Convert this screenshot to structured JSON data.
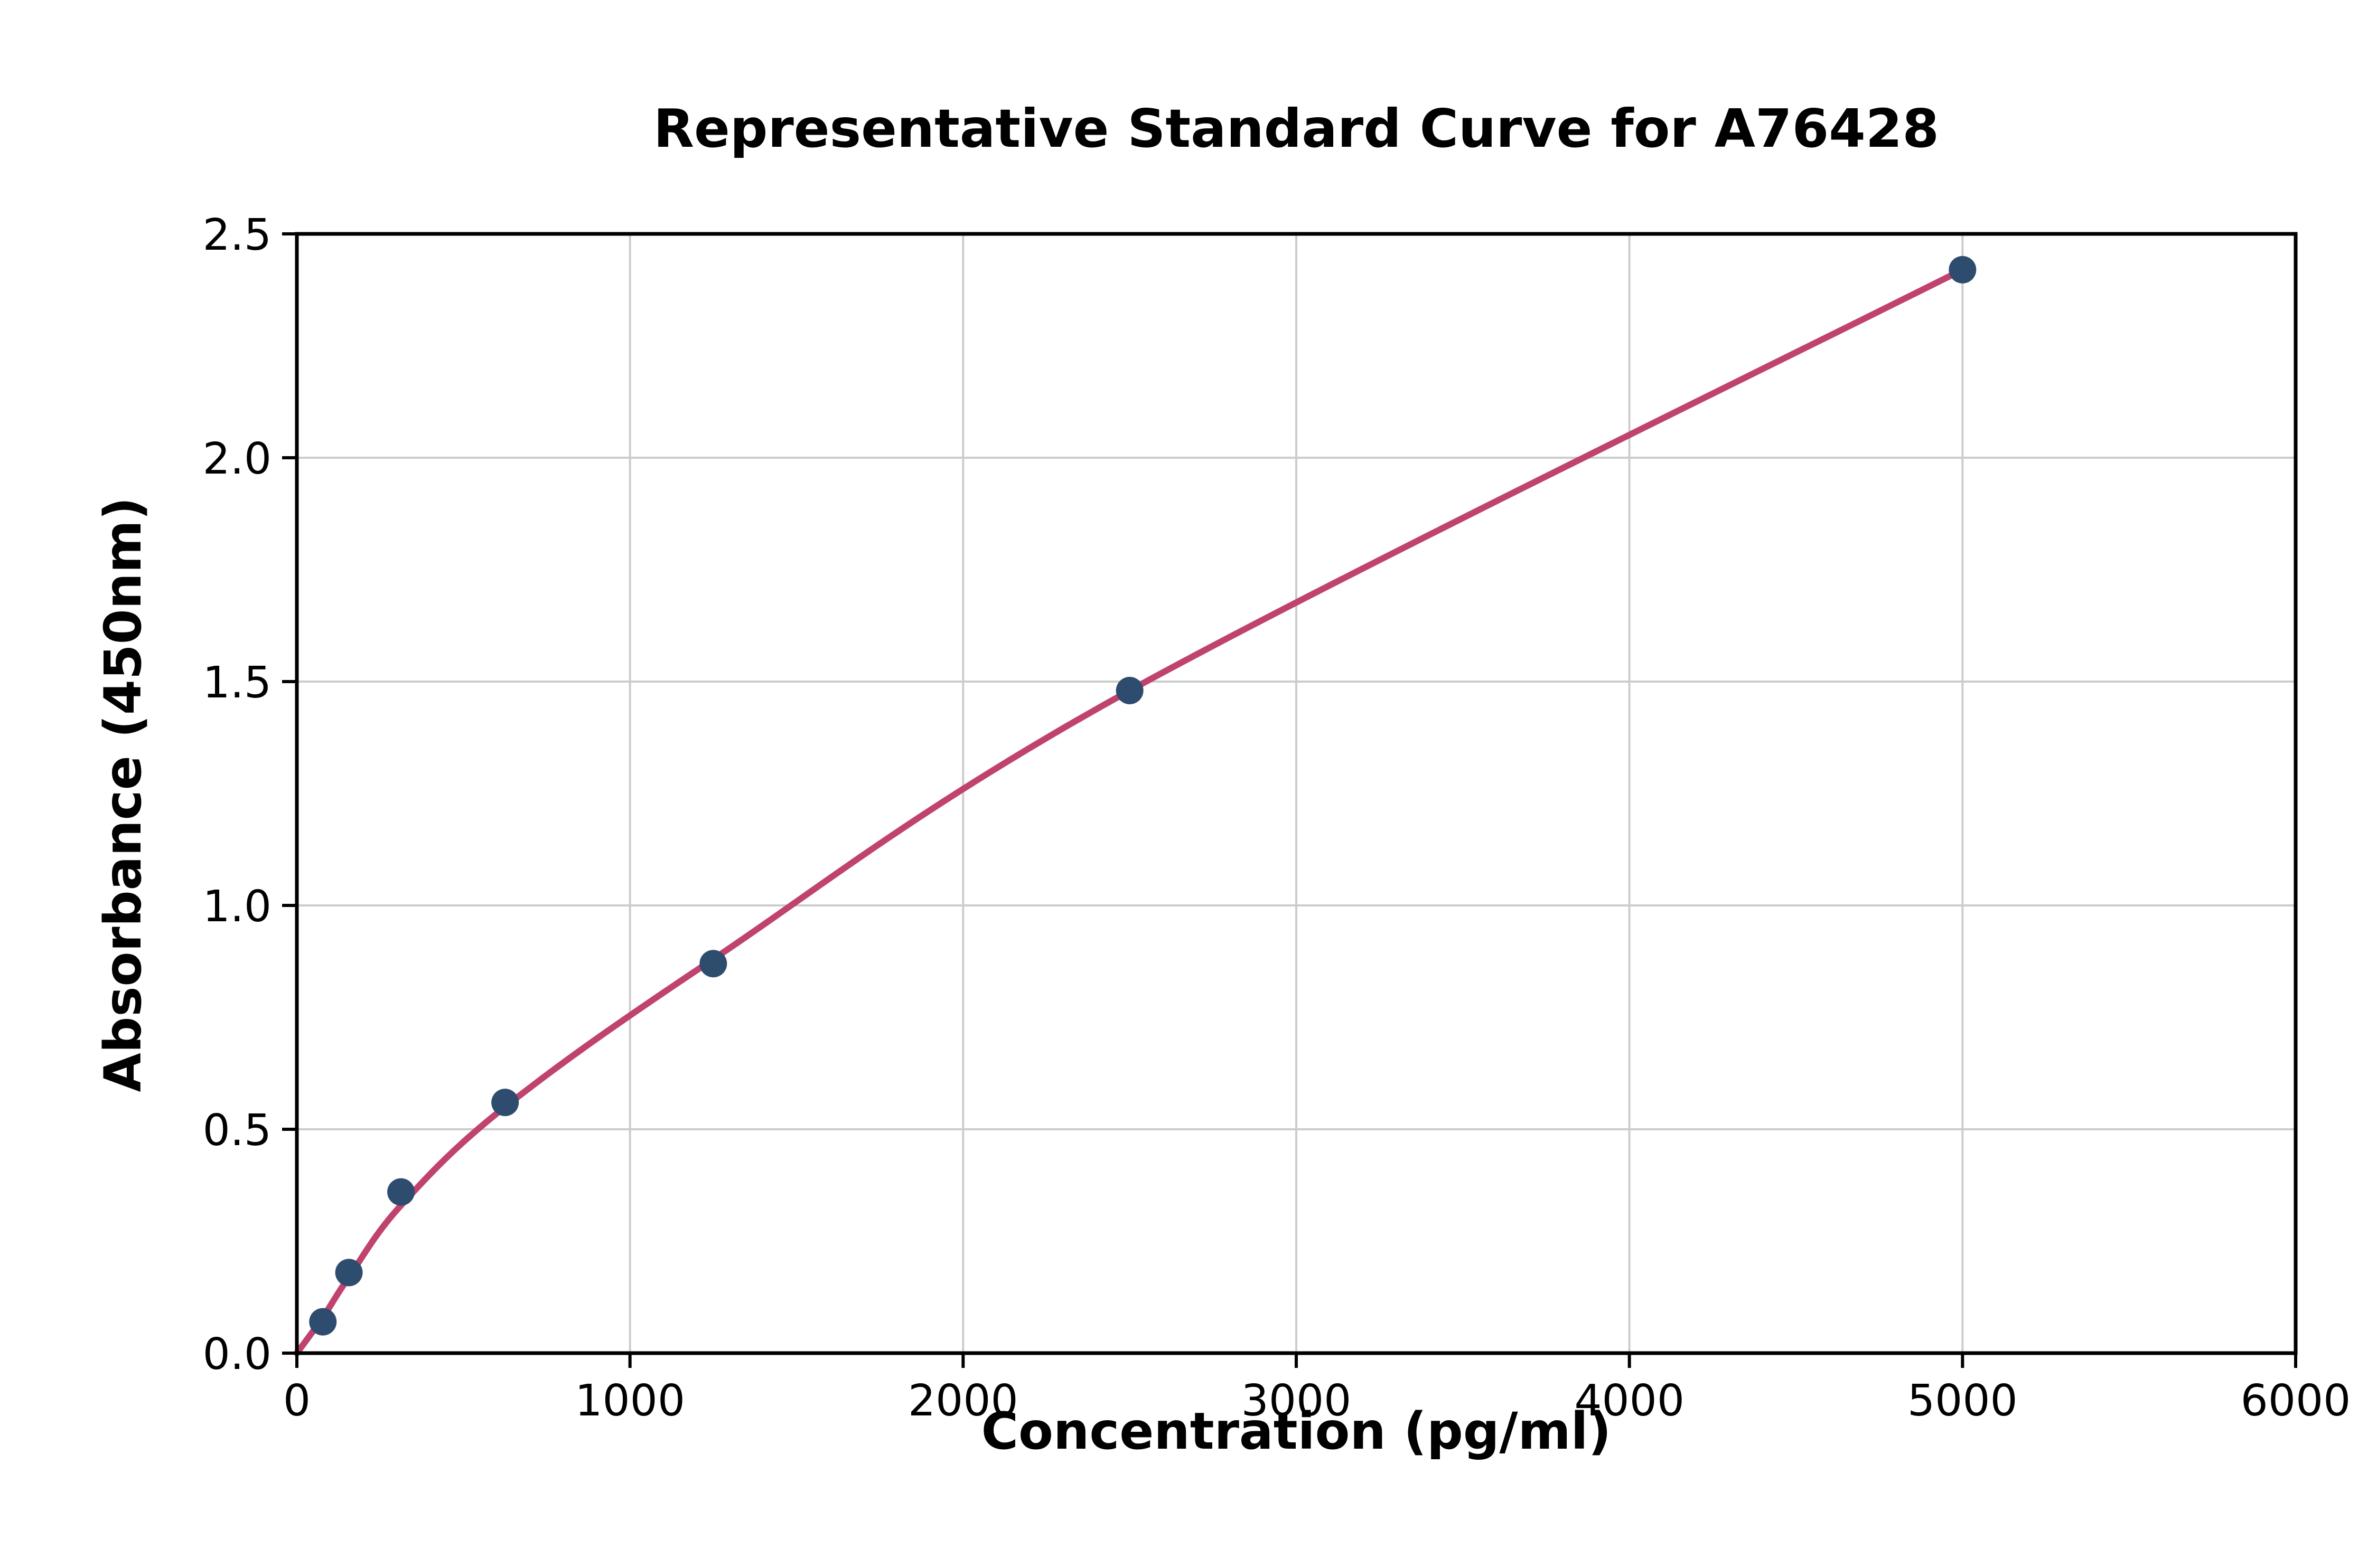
{
  "chart_data": {
    "type": "scatter",
    "title": "Representative Standard Curve for A76428",
    "xlabel": "Concentration (pg/ml)",
    "ylabel": "Absorbance (450nm)",
    "xlim": [
      0,
      6000
    ],
    "ylim": [
      0,
      2.5
    ],
    "grid": true,
    "legend": "none",
    "xticks": [
      0,
      1000,
      2000,
      3000,
      4000,
      5000,
      6000
    ],
    "xtick_labels": [
      "0",
      "1000",
      "2000",
      "3000",
      "4000",
      "5000",
      "6000"
    ],
    "yticks": [
      0,
      0.5,
      1.0,
      1.5,
      2.0,
      2.5
    ],
    "ytick_labels": [
      "0.0",
      "0.5",
      "1.0",
      "1.5",
      "2.0",
      "2.5"
    ],
    "points": [
      [
        78.1,
        0.07
      ],
      [
        156.3,
        0.18
      ],
      [
        312.5,
        0.36
      ],
      [
        625,
        0.56
      ],
      [
        1250,
        0.87
      ],
      [
        2500,
        1.48
      ],
      [
        5000,
        2.42
      ]
    ],
    "curve_points": [
      [
        0,
        0.0
      ],
      [
        78.1,
        0.08
      ],
      [
        156.3,
        0.17
      ],
      [
        312.5,
        0.33
      ],
      [
        625,
        0.55
      ],
      [
        1250,
        0.88
      ],
      [
        2500,
        1.48
      ],
      [
        5000,
        2.42
      ]
    ],
    "colors": {
      "marker": "#2e4d6e",
      "curve": "#c0436f",
      "grid": "#cccccc",
      "axis": "#000000",
      "background": "#ffffff"
    }
  }
}
